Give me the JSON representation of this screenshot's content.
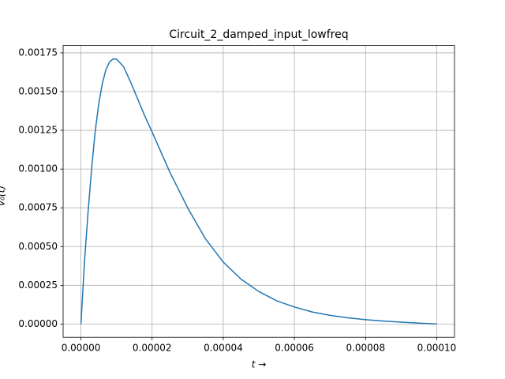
{
  "chart_data": {
    "type": "line",
    "title": "Circuit_2_damped_input_lowfreq",
    "xlabel": "t →",
    "ylabel": "v₀(t)",
    "x": [
      0,
      1e-06,
      2e-06,
      3e-06,
      4e-06,
      5e-06,
      6e-06,
      7e-06,
      8e-06,
      9e-06,
      1e-05,
      1.2e-05,
      1.4e-05,
      1.6e-05,
      1.8e-05,
      2e-05,
      2.5e-05,
      3e-05,
      3.5e-05,
      4e-05,
      4.5e-05,
      5e-05,
      5.5e-05,
      6e-05,
      6.5e-05,
      7e-05,
      7.5e-05,
      8e-05,
      8.5e-05,
      9e-05,
      9.5e-05,
      0.0001
    ],
    "series": [
      {
        "color": "#1f77b4",
        "values": [
          0,
          0.0004,
          0.00072,
          0.001,
          0.00124,
          0.00142,
          0.00155,
          0.00164,
          0.00169,
          0.00171,
          0.00171,
          0.00166,
          0.00156,
          0.00145,
          0.00134,
          0.00124,
          0.00098,
          0.00075,
          0.00055,
          0.0004,
          0.00029,
          0.00021,
          0.00015,
          0.00011,
          7.8e-05,
          5.6e-05,
          4e-05,
          2.8e-05,
          1.9e-05,
          1.2e-05,
          6e-06,
          1e-06
        ]
      }
    ],
    "xlim": [
      -5e-06,
      0.000105
    ],
    "ylim": [
      -8.56e-05,
      0.0017976
    ],
    "xticks": [
      {
        "value": 0,
        "label": "0.00000"
      },
      {
        "value": 2e-05,
        "label": "0.00002"
      },
      {
        "value": 4e-05,
        "label": "0.00004"
      },
      {
        "value": 6e-05,
        "label": "0.00006"
      },
      {
        "value": 8e-05,
        "label": "0.00008"
      },
      {
        "value": 0.0001,
        "label": "0.00010"
      }
    ],
    "yticks": [
      {
        "value": 0,
        "label": "0.00000"
      },
      {
        "value": 0.00025,
        "label": "0.00025"
      },
      {
        "value": 0.0005,
        "label": "0.00050"
      },
      {
        "value": 0.00075,
        "label": "0.00075"
      },
      {
        "value": 0.001,
        "label": "0.00100"
      },
      {
        "value": 0.00125,
        "label": "0.00125"
      },
      {
        "value": 0.0015,
        "label": "0.00150"
      },
      {
        "value": 0.00175,
        "label": "0.00175"
      }
    ],
    "grid": true
  }
}
